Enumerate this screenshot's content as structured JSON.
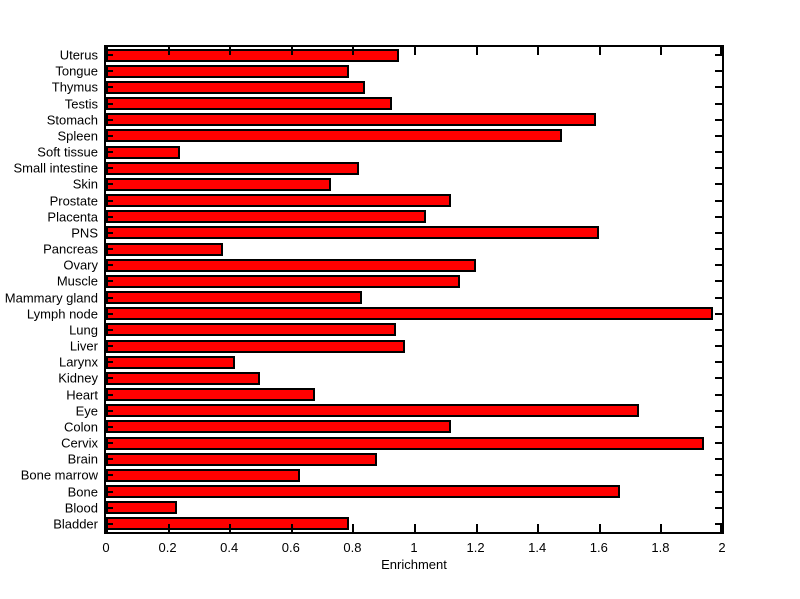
{
  "chart_data": {
    "type": "bar",
    "orientation": "horizontal",
    "title": "",
    "xlabel": "Enrichment",
    "ylabel": "",
    "xlim": [
      0,
      2
    ],
    "xticks": [
      0,
      0.2,
      0.4,
      0.6,
      0.8,
      1,
      1.2,
      1.4,
      1.6,
      1.8,
      2
    ],
    "xtick_labels": [
      "0",
      "0.2",
      "0.4",
      "0.6",
      "0.8",
      "1",
      "1.2",
      "1.4",
      "1.6",
      "1.8",
      "2"
    ],
    "categories": [
      "Uterus",
      "Tongue",
      "Thymus",
      "Testis",
      "Stomach",
      "Spleen",
      "Soft tissue",
      "Small intestine",
      "Skin",
      "Prostate",
      "Placenta",
      "PNS",
      "Pancreas",
      "Ovary",
      "Muscle",
      "Mammary gland",
      "Lymph node",
      "Lung",
      "Liver",
      "Larynx",
      "Kidney",
      "Heart",
      "Eye",
      "Colon",
      "Cervix",
      "Brain",
      "Bone marrow",
      "Bone",
      "Blood",
      "Bladder"
    ],
    "values": [
      0.95,
      0.79,
      0.84,
      0.93,
      1.59,
      1.48,
      0.24,
      0.82,
      0.73,
      1.12,
      1.04,
      1.6,
      0.38,
      1.2,
      1.15,
      0.83,
      1.97,
      0.94,
      0.97,
      0.42,
      0.5,
      0.68,
      1.73,
      1.12,
      1.94,
      0.88,
      0.63,
      1.67,
      0.23,
      0.79
    ],
    "legend": null,
    "grid": false,
    "bar_color": "#ff0000",
    "bar_border_color": "#000000",
    "axis_color": "#000000",
    "background_color": "#ffffff"
  }
}
